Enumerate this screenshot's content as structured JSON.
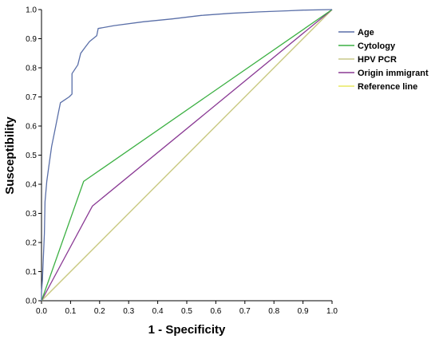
{
  "chart_data": {
    "type": "line",
    "title": "",
    "xlabel": "1 - Specificity",
    "ylabel": "Susceptibility",
    "xlim": [
      0,
      1
    ],
    "ylim": [
      0,
      1
    ],
    "xticks": [
      "0.0",
      "0.1",
      "0.2",
      "0.3",
      "0.4",
      "0.5",
      "0.6",
      "0.7",
      "0.8",
      "0.9",
      "1.0"
    ],
    "yticks": [
      "0.0",
      "0.1",
      "0.2",
      "0.3",
      "0.4",
      "0.5",
      "0.6",
      "0.7",
      "0.8",
      "0.9",
      "1.0"
    ],
    "grid": false,
    "legend_position": "top-right",
    "series": [
      {
        "name": "Age",
        "color": "#5a6fa8",
        "x": [
          0,
          0,
          0.003,
          0.006,
          0.01,
          0.012,
          0.018,
          0.025,
          0.035,
          0.045,
          0.055,
          0.065,
          0.08,
          0.095,
          0.105,
          0.105,
          0.125,
          0.135,
          0.15,
          0.165,
          0.19,
          0.195,
          0.25,
          0.35,
          0.45,
          0.55,
          0.65,
          0.75,
          0.85,
          0.9,
          1.0
        ],
        "y": [
          0,
          0.03,
          0.07,
          0.14,
          0.23,
          0.34,
          0.41,
          0.46,
          0.53,
          0.58,
          0.63,
          0.68,
          0.69,
          0.7,
          0.71,
          0.78,
          0.81,
          0.85,
          0.87,
          0.89,
          0.91,
          0.935,
          0.945,
          0.958,
          0.968,
          0.98,
          0.987,
          0.992,
          0.996,
          0.998,
          1.0
        ]
      },
      {
        "name": "Cytology",
        "color": "#3cb043",
        "x": [
          0,
          0.145,
          1.0
        ],
        "y": [
          0,
          0.41,
          1.0
        ]
      },
      {
        "name": "HPV PCR",
        "color": "#c8c88a",
        "x": [
          0,
          1.0
        ],
        "y": [
          0,
          1.0
        ]
      },
      {
        "name": "Origin immigrant",
        "color": "#8a3a94",
        "x": [
          0,
          0.175,
          1.0
        ],
        "y": [
          0,
          0.325,
          1.0
        ]
      },
      {
        "name": "Reference line",
        "color": "#e8e860",
        "x": [
          0,
          1.0
        ],
        "y": [
          0,
          1.0
        ]
      }
    ]
  }
}
